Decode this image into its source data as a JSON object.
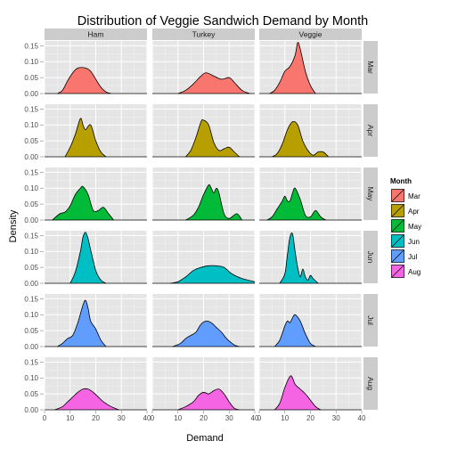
{
  "chart_data": {
    "type": "area",
    "title": "Distribution of Veggie Sandwich Demand by Month",
    "xlabel": "Demand",
    "ylabel": "Density",
    "xlim": [
      0,
      40
    ],
    "ylim": [
      0,
      0.165
    ],
    "x_ticks": [
      0,
      10,
      20,
      30,
      40
    ],
    "y_ticks": [
      0.0,
      0.05,
      0.1,
      0.15
    ],
    "y_tick_labels": [
      "0.00",
      "0.05",
      "0.10",
      "0.15"
    ],
    "columns": [
      "Ham",
      "Turkey",
      "Veggie"
    ],
    "rows": [
      "Mar",
      "Apr",
      "May",
      "Jun",
      "Jul",
      "Aug"
    ],
    "grid": true,
    "legend": {
      "title": "Month",
      "position": "right",
      "items": [
        {
          "label": "Mar",
          "color": "#F8766D"
        },
        {
          "label": "Apr",
          "color": "#B79F00"
        },
        {
          "label": "May",
          "color": "#00BA38"
        },
        {
          "label": "Jun",
          "color": "#00BFC4"
        },
        {
          "label": "Jul",
          "color": "#619CFF"
        },
        {
          "label": "Aug",
          "color": "#F564E3"
        }
      ]
    },
    "densities": {
      "Mar": {
        "Ham": [
          [
            5,
            0
          ],
          [
            7,
            0.01
          ],
          [
            9,
            0.04
          ],
          [
            11,
            0.065
          ],
          [
            13,
            0.08
          ],
          [
            16,
            0.08
          ],
          [
            18,
            0.07
          ],
          [
            20,
            0.045
          ],
          [
            22,
            0.02
          ],
          [
            24,
            0.005
          ],
          [
            26,
            0
          ]
        ],
        "Turkey": [
          [
            10,
            0
          ],
          [
            13,
            0.01
          ],
          [
            16,
            0.03
          ],
          [
            19,
            0.055
          ],
          [
            21,
            0.065
          ],
          [
            24,
            0.055
          ],
          [
            27,
            0.045
          ],
          [
            30,
            0.05
          ],
          [
            32,
            0.035
          ],
          [
            35,
            0.01
          ],
          [
            38,
            0
          ]
        ],
        "Veggie": [
          [
            4,
            0
          ],
          [
            6,
            0.01
          ],
          [
            8,
            0.035
          ],
          [
            10,
            0.07
          ],
          [
            12,
            0.085
          ],
          [
            14,
            0.12
          ],
          [
            15,
            0.16
          ],
          [
            16,
            0.14
          ],
          [
            18,
            0.07
          ],
          [
            20,
            0.025
          ],
          [
            22,
            0
          ]
        ]
      },
      "Apr": {
        "Ham": [
          [
            8,
            0
          ],
          [
            10,
            0.03
          ],
          [
            12,
            0.07
          ],
          [
            14,
            0.12
          ],
          [
            15,
            0.1
          ],
          [
            16,
            0.085
          ],
          [
            18,
            0.1
          ],
          [
            20,
            0.05
          ],
          [
            22,
            0.015
          ],
          [
            24,
            0
          ]
        ],
        "Turkey": [
          [
            13,
            0
          ],
          [
            15,
            0.02
          ],
          [
            17,
            0.06
          ],
          [
            19,
            0.11
          ],
          [
            20,
            0.115
          ],
          [
            22,
            0.1
          ],
          [
            24,
            0.045
          ],
          [
            26,
            0.02
          ],
          [
            28,
            0.025
          ],
          [
            30,
            0.03
          ],
          [
            32,
            0.015
          ],
          [
            34,
            0
          ]
        ],
        "Veggie": [
          [
            5,
            0
          ],
          [
            7,
            0.01
          ],
          [
            9,
            0.04
          ],
          [
            11,
            0.085
          ],
          [
            13,
            0.11
          ],
          [
            15,
            0.1
          ],
          [
            17,
            0.05
          ],
          [
            19,
            0.02
          ],
          [
            21,
            0.005
          ],
          [
            23,
            0.015
          ],
          [
            25,
            0.015
          ],
          [
            27,
            0
          ]
        ]
      },
      "May": {
        "Ham": [
          [
            3,
            0
          ],
          [
            6,
            0.02
          ],
          [
            8,
            0.025
          ],
          [
            10,
            0.045
          ],
          [
            12,
            0.08
          ],
          [
            14,
            0.1
          ],
          [
            15,
            0.105
          ],
          [
            17,
            0.08
          ],
          [
            19,
            0.03
          ],
          [
            21,
            0.03
          ],
          [
            23,
            0.04
          ],
          [
            25,
            0.02
          ],
          [
            27,
            0
          ]
        ],
        "Turkey": [
          [
            13,
            0
          ],
          [
            16,
            0.015
          ],
          [
            18,
            0.04
          ],
          [
            20,
            0.08
          ],
          [
            22,
            0.11
          ],
          [
            23,
            0.1
          ],
          [
            24,
            0.085
          ],
          [
            25,
            0.1
          ],
          [
            26,
            0.085
          ],
          [
            28,
            0.02
          ],
          [
            30,
            0.005
          ],
          [
            33,
            0.02
          ],
          [
            35,
            0
          ]
        ],
        "Veggie": [
          [
            3,
            0
          ],
          [
            5,
            0.01
          ],
          [
            7,
            0.035
          ],
          [
            9,
            0.06
          ],
          [
            10,
            0.075
          ],
          [
            11,
            0.06
          ],
          [
            12,
            0.06
          ],
          [
            13,
            0.085
          ],
          [
            14,
            0.1
          ],
          [
            16,
            0.065
          ],
          [
            18,
            0.015
          ],
          [
            20,
            0.01
          ],
          [
            22,
            0.03
          ],
          [
            24,
            0.01
          ],
          [
            26,
            0
          ]
        ]
      },
      "Jun": {
        "Ham": [
          [
            10,
            0
          ],
          [
            12,
            0.035
          ],
          [
            14,
            0.1
          ],
          [
            15,
            0.145
          ],
          [
            16,
            0.16
          ],
          [
            17,
            0.14
          ],
          [
            18,
            0.105
          ],
          [
            20,
            0.04
          ],
          [
            22,
            0.01
          ],
          [
            24,
            0
          ]
        ],
        "Turkey": [
          [
            7,
            0
          ],
          [
            10,
            0.005
          ],
          [
            13,
            0.02
          ],
          [
            16,
            0.04
          ],
          [
            19,
            0.05
          ],
          [
            22,
            0.055
          ],
          [
            25,
            0.055
          ],
          [
            28,
            0.05
          ],
          [
            31,
            0.03
          ],
          [
            35,
            0.015
          ],
          [
            40,
            0.005
          ]
        ],
        "Veggie": [
          [
            8,
            0
          ],
          [
            10,
            0.03
          ],
          [
            11,
            0.09
          ],
          [
            12,
            0.145
          ],
          [
            13,
            0.155
          ],
          [
            14,
            0.1
          ],
          [
            15,
            0.05
          ],
          [
            16,
            0.02
          ],
          [
            17,
            0.045
          ],
          [
            18,
            0.02
          ],
          [
            19,
            0.01
          ],
          [
            20,
            0.025
          ],
          [
            21,
            0.015
          ],
          [
            23,
            0
          ]
        ]
      },
      "Jul": {
        "Ham": [
          [
            5,
            0
          ],
          [
            7,
            0.01
          ],
          [
            9,
            0.025
          ],
          [
            11,
            0.035
          ],
          [
            13,
            0.075
          ],
          [
            15,
            0.13
          ],
          [
            16,
            0.145
          ],
          [
            17,
            0.12
          ],
          [
            18,
            0.08
          ],
          [
            20,
            0.055
          ],
          [
            22,
            0.02
          ],
          [
            24,
            0
          ]
        ],
        "Turkey": [
          [
            8,
            0
          ],
          [
            11,
            0.01
          ],
          [
            13,
            0.025
          ],
          [
            15,
            0.035
          ],
          [
            17,
            0.045
          ],
          [
            19,
            0.07
          ],
          [
            21,
            0.08
          ],
          [
            23,
            0.075
          ],
          [
            25,
            0.06
          ],
          [
            27,
            0.045
          ],
          [
            29,
            0.025
          ],
          [
            32,
            0.005
          ],
          [
            34,
            0
          ]
        ],
        "Veggie": [
          [
            6,
            0
          ],
          [
            8,
            0.02
          ],
          [
            10,
            0.065
          ],
          [
            11,
            0.08
          ],
          [
            12,
            0.075
          ],
          [
            13,
            0.09
          ],
          [
            14,
            0.1
          ],
          [
            16,
            0.08
          ],
          [
            18,
            0.04
          ],
          [
            20,
            0.01
          ],
          [
            22,
            0
          ]
        ]
      },
      "Aug": {
        "Ham": [
          [
            4,
            0
          ],
          [
            7,
            0.01
          ],
          [
            9,
            0.025
          ],
          [
            11,
            0.04
          ],
          [
            13,
            0.055
          ],
          [
            15,
            0.065
          ],
          [
            17,
            0.065
          ],
          [
            19,
            0.055
          ],
          [
            21,
            0.04
          ],
          [
            23,
            0.025
          ],
          [
            26,
            0.01
          ],
          [
            29,
            0
          ]
        ],
        "Turkey": [
          [
            10,
            0
          ],
          [
            13,
            0.01
          ],
          [
            16,
            0.025
          ],
          [
            18,
            0.045
          ],
          [
            20,
            0.055
          ],
          [
            22,
            0.05
          ],
          [
            24,
            0.06
          ],
          [
            26,
            0.065
          ],
          [
            28,
            0.05
          ],
          [
            30,
            0.025
          ],
          [
            32,
            0.005
          ],
          [
            34,
            0
          ]
        ],
        "Veggie": [
          [
            6,
            0
          ],
          [
            8,
            0.02
          ],
          [
            10,
            0.07
          ],
          [
            12,
            0.105
          ],
          [
            13,
            0.1
          ],
          [
            14,
            0.08
          ],
          [
            16,
            0.065
          ],
          [
            18,
            0.05
          ],
          [
            20,
            0.03
          ],
          [
            22,
            0.01
          ],
          [
            24,
            0
          ]
        ]
      }
    }
  },
  "colors": {
    "panel_bg": "#E5E5E5",
    "grid_major": "#FFFFFF",
    "grid_minor": "#F2F2F2",
    "strip_bg": "#CCCCCC",
    "outline": "#000000"
  }
}
